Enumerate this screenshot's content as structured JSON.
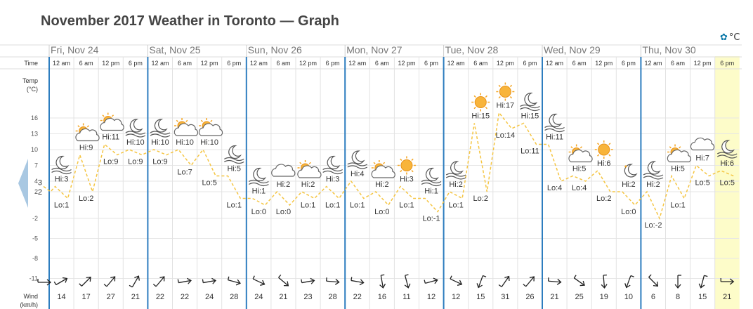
{
  "title": "November 2017 Weather in Toronto — Graph",
  "settings": {
    "icon": "gear-icon",
    "unit": "°C"
  },
  "nav": {
    "prev_icon": "chevron-left-icon"
  },
  "row_labels": {
    "time": "Time",
    "temp_line1": "Temp",
    "temp_line2": "(°C)",
    "wind_line1": "Wind",
    "wind_line2": "(km/h)"
  },
  "days": [
    "Fri, Nov 24",
    "Sat, Nov 25",
    "Sun, Nov 26",
    "Mon, Nov 27",
    "Tue, Nov 28",
    "Wed, Nov 29",
    "Thu, Nov 30"
  ],
  "colors": {
    "day_line": "#2d7dbf",
    "temp_line": "#f5c542",
    "highlight": "#fdfcc9",
    "grid": "#e6e6e6",
    "arrow_nav": "#a9c8e2"
  },
  "chart_data": {
    "type": "line",
    "title": "November 2017 Weather in Toronto — Graph",
    "ylabel": "Temp (°C)",
    "xlabel": "",
    "y_ticks": [
      16,
      13,
      10,
      7,
      4,
      2,
      -2,
      -5,
      -8,
      -11
    ],
    "ylim": [
      -13,
      18
    ],
    "highlighted": "Thu, Nov 30 6 pm",
    "x": [
      "Fri, Nov 24 12 am",
      "Fri, Nov 24 6 am",
      "Fri, Nov 24 12 pm",
      "Fri, Nov 24 6 pm",
      "Sat, Nov 25 12 am",
      "Sat, Nov 25 6 am",
      "Sat, Nov 25 12 pm",
      "Sat, Nov 25 6 pm",
      "Sun, Nov 26 12 am",
      "Sun, Nov 26 6 am",
      "Sun, Nov 26 12 pm",
      "Sun, Nov 26 6 pm",
      "Mon, Nov 27 12 am",
      "Mon, Nov 27 6 am",
      "Mon, Nov 27 12 pm",
      "Mon, Nov 27 6 pm",
      "Tue, Nov 28 12 am",
      "Tue, Nov 28 6 am",
      "Tue, Nov 28 12 pm",
      "Tue, Nov 28 6 pm",
      "Wed, Nov 29 12 am",
      "Wed, Nov 29 6 am",
      "Wed, Nov 29 12 pm",
      "Wed, Nov 29 6 pm",
      "Thu, Nov 30 12 am",
      "Thu, Nov 30 6 am",
      "Thu, Nov 30 12 pm",
      "Thu, Nov 30 6 pm"
    ],
    "time_labels": [
      "12 am",
      "6 am",
      "12 pm",
      "6 pm",
      "12 am",
      "6 am",
      "12 pm",
      "6 pm",
      "12 am",
      "6 am",
      "12 pm",
      "6 pm",
      "12 am",
      "6 am",
      "12 pm",
      "6 pm",
      "12 am",
      "6 am",
      "12 pm",
      "6 pm",
      "12 am",
      "6 am",
      "12 pm",
      "6 pm",
      "12 am",
      "6 am",
      "12 pm",
      "6 pm"
    ],
    "leading": {
      "hi": "3",
      "lo": "2",
      "wind_dir": "east"
    },
    "hi": [
      3,
      9,
      11,
      10,
      10,
      10,
      10,
      5,
      1,
      2,
      2,
      3,
      4,
      2,
      3,
      1,
      2,
      15,
      17,
      15,
      11,
      5,
      6,
      2,
      2,
      5,
      7,
      6
    ],
    "lo": [
      1,
      2,
      9,
      9,
      9,
      7,
      5,
      1,
      0,
      0,
      1,
      1,
      1,
      0,
      1,
      -1,
      1,
      2,
      14,
      11,
      4,
      4,
      2,
      0,
      -2,
      1,
      5,
      5
    ],
    "hi_labels": [
      "Hi:3",
      "Hi:9",
      "Hi:11",
      "Hi:10",
      "Hi:10",
      "Hi:10",
      "Hi:10",
      "Hi:5",
      "Hi:1",
      "Hi:2",
      "Hi:2",
      "Hi:3",
      "Hi:4",
      "Hi:2",
      "Hi:3",
      "Hi:1",
      "Hi:2",
      "Hi:15",
      "Hi:17",
      "Hi:15",
      "Hi:11",
      "Hi:5",
      "Hi:6",
      "Hi:2",
      "Hi:2",
      "Hi:5",
      "Hi:7",
      "Hi:6"
    ],
    "lo_labels": [
      "Lo:1",
      "Lo:2",
      "Lo:9",
      "Lo:9",
      "Lo:9",
      "Lo:7",
      "Lo:5",
      "Lo:1",
      "Lo:0",
      "Lo:0",
      "Lo:1",
      "Lo:1",
      "Lo:1",
      "Lo:0",
      "Lo:1",
      "Lo:-1",
      "Lo:1",
      "Lo:2",
      "Lo:14",
      "Lo:11",
      "Lo:4",
      "Lo:4",
      "Lo:2",
      "Lo:0",
      "Lo:-2",
      "Lo:1",
      "Lo:5",
      "Lo:5"
    ],
    "icons": [
      "moon-cloud-icon",
      "sun-cloud-icon",
      "sun-cloud-icon",
      "moon-cloud-icon",
      "moon-cloud-icon",
      "sun-cloud-icon",
      "sun-cloud-icon",
      "moon-cloud-icon",
      "moon-cloud-icon",
      "cloud-icon",
      "sun-cloud-icon",
      "moon-cloud-icon",
      "moon-cloud-icon",
      "sun-cloud-icon",
      "sun-icon",
      "moon-cloud-icon",
      "moon-cloud-icon",
      "sun-icon",
      "sun-icon",
      "moon-cloud-icon",
      "moon-cloud-icon",
      "sun-cloud-icon",
      "sun-icon",
      "moon-icon",
      "moon-cloud-icon",
      "sun-cloud-icon",
      "cloud-icon",
      "moon-cloud-icon"
    ],
    "wind": [
      "14",
      "17",
      "27",
      "21",
      "22",
      "22",
      "24",
      "28",
      "24",
      "21",
      "23",
      "28",
      "22",
      "16",
      "11",
      "12",
      "12",
      "15",
      "31",
      "26",
      "21",
      "25",
      "19",
      "10",
      "6",
      "8",
      "15",
      "21"
    ],
    "wind_dir_deg": [
      60,
      45,
      40,
      30,
      40,
      80,
      80,
      105,
      115,
      130,
      80,
      95,
      100,
      170,
      165,
      75,
      115,
      200,
      35,
      40,
      95,
      125,
      175,
      200,
      135,
      180,
      195,
      90
    ]
  }
}
